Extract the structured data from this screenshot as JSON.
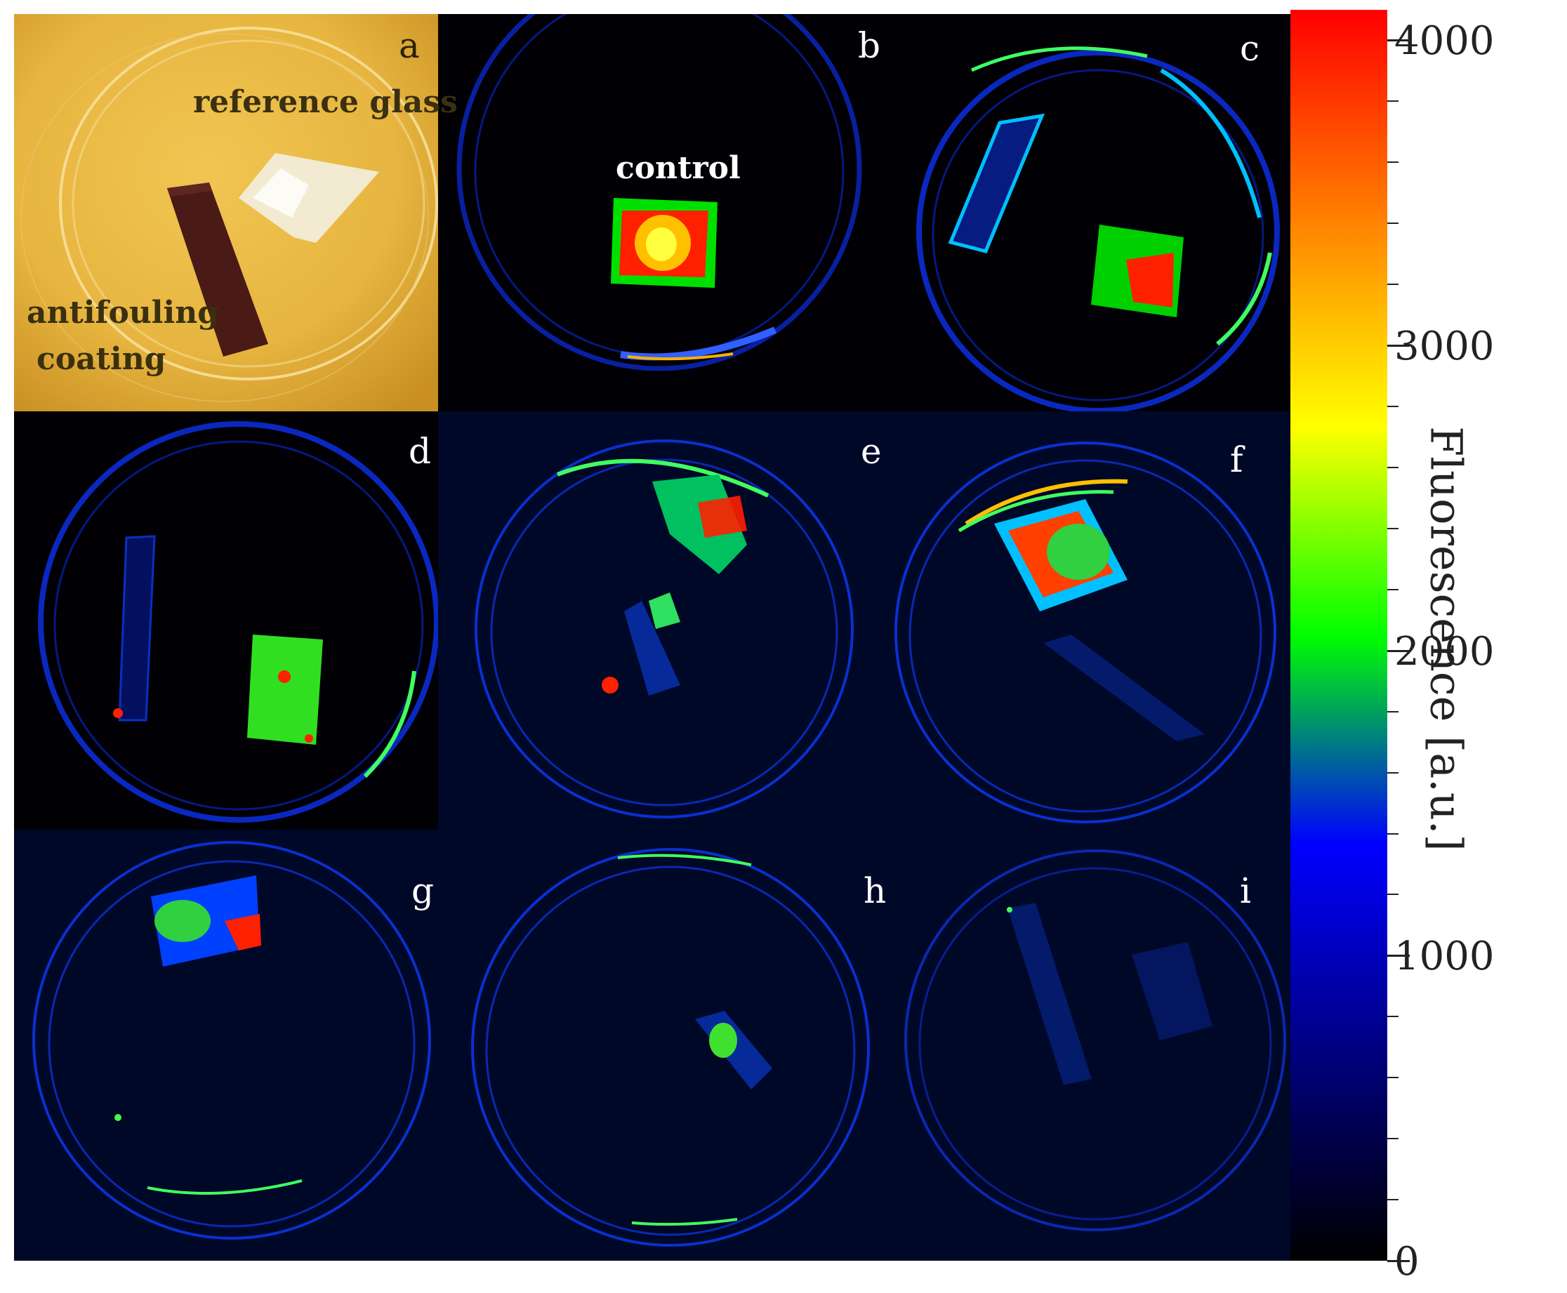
{
  "figure": {
    "panels": [
      {
        "label": "a"
      },
      {
        "label": "b"
      },
      {
        "label": "c"
      },
      {
        "label": "d"
      },
      {
        "label": "e"
      },
      {
        "label": "f"
      },
      {
        "label": "g"
      },
      {
        "label": "h"
      },
      {
        "label": "i"
      }
    ],
    "annotations": {
      "reference_glass": "reference glass",
      "antifouling_line1": "antifouling",
      "antifouling_line2": "coating",
      "control": "control"
    }
  },
  "colorbar": {
    "title": "Fluorescence [a.u.]",
    "min": 0,
    "max": 4100,
    "ticks": [
      "0",
      "1000",
      "2000",
      "3000",
      "4000"
    ],
    "colors": [
      "#000000",
      "#000080",
      "#0000ff",
      "#00ff00",
      "#ffff00",
      "#ff8000",
      "#ff0000"
    ]
  }
}
